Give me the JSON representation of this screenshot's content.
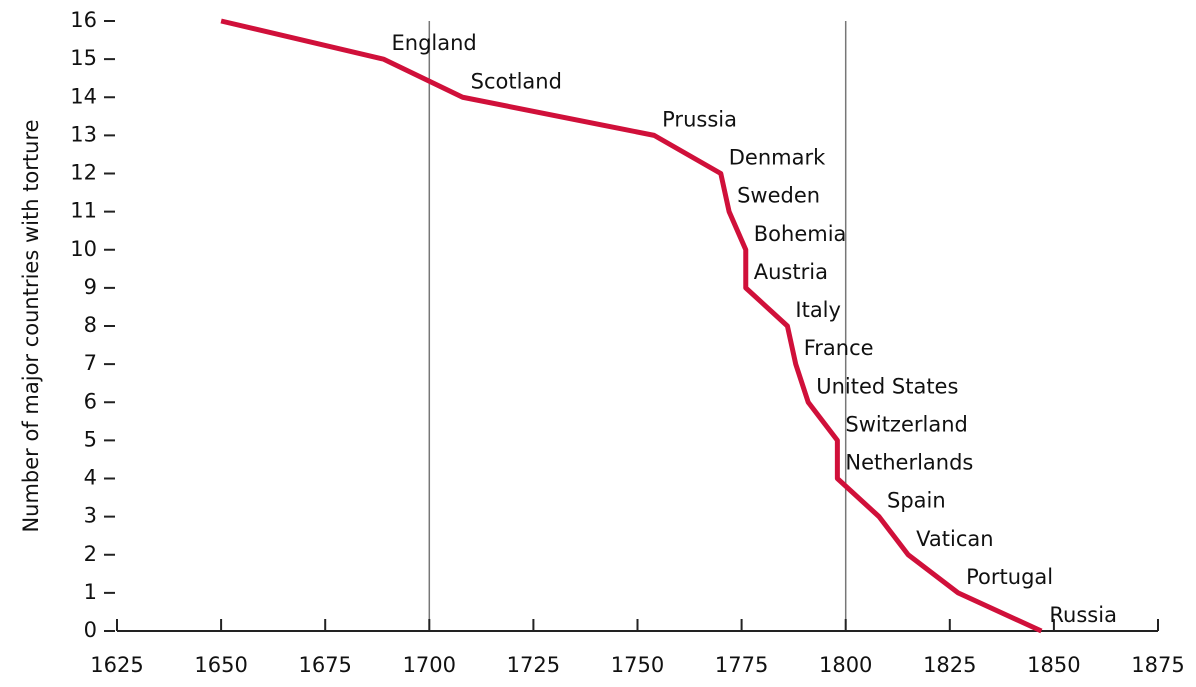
{
  "chart_data": {
    "type": "line",
    "y_label": "Number of major countries with torture",
    "x": [
      1650,
      1689,
      1708,
      1754,
      1770,
      1772,
      1776,
      1776,
      1786,
      1788,
      1791,
      1798,
      1798,
      1808,
      1815,
      1827,
      1847
    ],
    "series": [
      {
        "name": null,
        "color": "#d0103a",
        "values": [
          16,
          15,
          14,
          13,
          12,
          11,
          10,
          9,
          8,
          7,
          6,
          5,
          4,
          3,
          2,
          1,
          0
        ]
      }
    ],
    "point_labels": [
      null,
      "England",
      "Scotland",
      "Prussia",
      "Denmark",
      "Sweden",
      "Bohemia",
      "Austria",
      "Italy",
      "France",
      "United States",
      "Switzerland",
      "Netherlands",
      "Spain",
      "Vatican",
      "Portugal",
      "Russia"
    ],
    "reference_lines_x": [
      1700,
      1800
    ],
    "xlim": [
      1625,
      1875
    ],
    "xticks": [
      1625,
      1650,
      1675,
      1700,
      1725,
      1750,
      1775,
      1800,
      1825,
      1850,
      1875
    ],
    "ylim": [
      0,
      16
    ],
    "yticks": [
      0,
      1,
      2,
      3,
      4,
      5,
      6,
      7,
      8,
      9,
      10,
      11,
      12,
      13,
      14,
      15,
      16
    ]
  }
}
